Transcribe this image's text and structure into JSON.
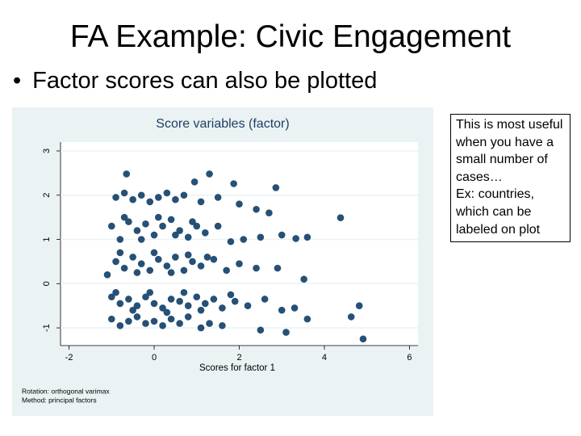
{
  "title": "FA Example:  Civic Engagement",
  "bullet": "Factor scores can also be plotted",
  "note": [
    "This is most useful when you have a small number of cases…",
    "Ex:  countries, which can be labeled on plot"
  ],
  "chart_data": {
    "type": "scatter",
    "title": "Score variables (factor)",
    "x_label": "Scores for factor 1",
    "notes": [
      "Rotation: orthogonal varimax",
      "Method: principal factors"
    ],
    "xlim": [
      -2.2,
      6.2
    ],
    "ylim": [
      -1.4,
      3.2
    ],
    "xticks": [
      -2,
      0,
      2,
      4,
      6
    ],
    "yticks": [
      -1,
      0,
      1,
      2,
      3
    ],
    "grid": true,
    "series": [
      {
        "color": "#1a476f",
        "x": [
          -0.9,
          -0.7,
          -0.5,
          -0.3,
          -0.1,
          0.1,
          0.3,
          0.5,
          0.7,
          1.1,
          1.5,
          2.0,
          -1.0,
          -0.8,
          -0.6,
          -0.4,
          -0.2,
          0,
          0.2,
          0.4,
          0.6,
          0.8,
          1.0,
          1.2,
          1.5,
          1.8,
          2.1,
          2.5,
          3.0,
          -0.7,
          -0.3,
          0.1,
          0.5,
          0.9,
          -1.1,
          -0.9,
          -0.7,
          -0.5,
          -0.3,
          -0.1,
          0.1,
          0.3,
          0.5,
          0.7,
          0.9,
          1.1,
          1.4,
          1.7,
          2.0,
          2.4,
          2.9,
          -0.8,
          -0.4,
          0,
          0.4,
          0.8,
          1.25,
          -1.0,
          -0.8,
          -0.6,
          -0.4,
          -0.2,
          0,
          0.2,
          0.4,
          0.6,
          0.8,
          1.0,
          1.2,
          1.4,
          1.6,
          1.9,
          2.2,
          2.6,
          3.0,
          3.3,
          -0.9,
          -0.5,
          -0.1,
          0.3,
          0.7,
          1.1,
          1.8,
          -1.0,
          -0.8,
          -0.6,
          -0.4,
          -0.2,
          0,
          0.2,
          0.4,
          0.6,
          0.8,
          1.1,
          1.3,
          1.6,
          2.5,
          3.1,
          3.6,
          4.38,
          4.91,
          4.82,
          4.63,
          3.52,
          2.86,
          1.3,
          -0.65,
          0.95,
          1.87,
          2.4,
          2.7,
          3.33,
          3.6
        ],
        "y": [
          1.95,
          2.05,
          1.9,
          2.0,
          1.85,
          1.95,
          2.05,
          1.9,
          2.0,
          1.85,
          1.95,
          1.8,
          1.3,
          1.0,
          1.4,
          1.2,
          1.35,
          1.1,
          1.3,
          1.45,
          1.2,
          1.05,
          1.3,
          1.15,
          1.3,
          0.95,
          1.0,
          1.05,
          1.1,
          1.5,
          1.0,
          1.5,
          1.1,
          1.4,
          0.2,
          0.5,
          0.35,
          0.6,
          0.45,
          0.3,
          0.55,
          0.4,
          0.6,
          0.3,
          0.5,
          0.4,
          0.55,
          0.3,
          0.45,
          0.35,
          0.35,
          0.7,
          0.25,
          0.7,
          0.25,
          0.65,
          0.6,
          -0.3,
          -0.45,
          -0.35,
          -0.5,
          -0.3,
          -0.45,
          -0.55,
          -0.35,
          -0.4,
          -0.5,
          -0.3,
          -0.45,
          -0.35,
          -0.55,
          -0.4,
          -0.5,
          -0.35,
          -0.6,
          -0.55,
          -0.2,
          -0.6,
          -0.2,
          -0.65,
          -0.2,
          -0.6,
          -0.25,
          -0.8,
          -0.95,
          -0.85,
          -0.75,
          -0.9,
          -0.85,
          -0.95,
          -0.8,
          -0.9,
          -0.75,
          -1.0,
          -0.9,
          -0.95,
          -1.05,
          -1.1,
          -0.8,
          1.49,
          -1.25,
          -0.5,
          -0.75,
          0.1,
          2.17,
          2.48,
          2.48,
          2.3,
          2.26,
          1.68,
          1.6,
          1.02,
          1.05
        ]
      }
    ]
  }
}
